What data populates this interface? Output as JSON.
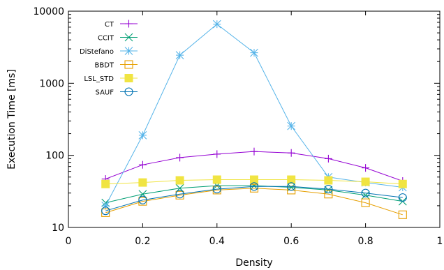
{
  "chart_data": {
    "type": "line",
    "xlabel": "Density",
    "ylabel": "Execution Time [ms]",
    "xlim": [
      0,
      1
    ],
    "ylim": [
      10,
      10000
    ],
    "yscale": "log",
    "grid": false,
    "legend_position": "top-left",
    "x_ticks": [
      "0",
      "0.2",
      "0.4",
      "0.6",
      "0.8",
      "1"
    ],
    "y_ticks": [
      "10",
      "100",
      "1000",
      "10000"
    ],
    "x": [
      0.1,
      0.2,
      0.3,
      0.4,
      0.5,
      0.6,
      0.7,
      0.8,
      0.9
    ],
    "series": [
      {
        "name": "CT",
        "color": "#9400d3",
        "marker": "plus",
        "values": [
          47,
          74,
          93,
          104,
          113,
          108,
          90,
          67,
          44
        ]
      },
      {
        "name": "CCIT",
        "color": "#009e73",
        "marker": "cross",
        "values": [
          22,
          29,
          35,
          38,
          38,
          36,
          33,
          28,
          23
        ]
      },
      {
        "name": "DiStefano",
        "color": "#56b4e9",
        "marker": "asterisk",
        "values": [
          20,
          190,
          2450,
          6600,
          2650,
          255,
          50,
          42,
          36
        ]
      },
      {
        "name": "BBDT",
        "color": "#e69f00",
        "marker": "square-open",
        "values": [
          16,
          23,
          28,
          33,
          35,
          33,
          29,
          22,
          15
        ]
      },
      {
        "name": "LSL_STD",
        "color": "#f0e442",
        "marker": "square-filled",
        "values": [
          40,
          42,
          45,
          46,
          46,
          46,
          45,
          43,
          40
        ]
      },
      {
        "name": "SAUF",
        "color": "#0072b2",
        "marker": "circle-open",
        "values": [
          17,
          24,
          29,
          34,
          37,
          37,
          34,
          30,
          26
        ]
      }
    ]
  }
}
